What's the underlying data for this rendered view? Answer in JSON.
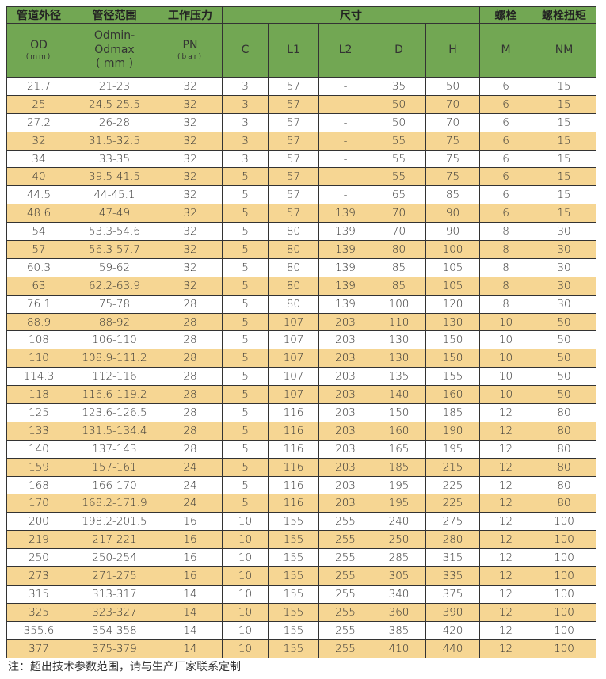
{
  "header": {
    "groups": [
      "管道外径",
      "管径范围",
      "工作压力",
      "尺寸",
      "螺栓",
      "螺栓扭矩"
    ],
    "od": "OD",
    "od_unit": "(mm)",
    "range_line1": "Odmin-",
    "range_line2": "Odmax",
    "range_unit": "( mm )",
    "pn": "PN",
    "pn_unit": "(bar)",
    "cols": [
      "C",
      "L1",
      "L2",
      "D",
      "H",
      "M",
      "NM"
    ]
  },
  "rows": [
    [
      "21.7",
      "21-23",
      "32",
      "3",
      "57",
      "-",
      "35",
      "50",
      "6",
      "15"
    ],
    [
      "25",
      "24.5-25.5",
      "32",
      "3",
      "57",
      "-",
      "50",
      "70",
      "6",
      "15"
    ],
    [
      "27.2",
      "26-28",
      "32",
      "3",
      "57",
      "-",
      "50",
      "70",
      "6",
      "15"
    ],
    [
      "32",
      "31.5-32.5",
      "32",
      "3",
      "57",
      "-",
      "55",
      "75",
      "6",
      "15"
    ],
    [
      "34",
      "33-35",
      "32",
      "3",
      "57",
      "-",
      "55",
      "75",
      "6",
      "15"
    ],
    [
      "40",
      "39.5-41.5",
      "32",
      "5",
      "57",
      "-",
      "55",
      "75",
      "6",
      "15"
    ],
    [
      "44.5",
      "44-45.1",
      "32",
      "5",
      "57",
      "-",
      "65",
      "85",
      "6",
      "15"
    ],
    [
      "48.6",
      "47-49",
      "32",
      "5",
      "57",
      "139",
      "70",
      "90",
      "6",
      "15"
    ],
    [
      "54",
      "53.3-54.6",
      "32",
      "5",
      "80",
      "139",
      "70",
      "90",
      "8",
      "30"
    ],
    [
      "57",
      "56.3-57.7",
      "32",
      "5",
      "80",
      "139",
      "80",
      "100",
      "8",
      "30"
    ],
    [
      "60.3",
      "59-62",
      "32",
      "5",
      "80",
      "139",
      "85",
      "105",
      "8",
      "30"
    ],
    [
      "63",
      "62.2-63.9",
      "32",
      "5",
      "80",
      "139",
      "85",
      "105",
      "8",
      "30"
    ],
    [
      "76.1",
      "75-78",
      "28",
      "5",
      "80",
      "139",
      "100",
      "120",
      "8",
      "30"
    ],
    [
      "88.9",
      "88-92",
      "28",
      "5",
      "107",
      "203",
      "110",
      "130",
      "10",
      "50"
    ],
    [
      "108",
      "106-110",
      "28",
      "5",
      "107",
      "203",
      "130",
      "150",
      "10",
      "50"
    ],
    [
      "110",
      "108.9-111.2",
      "28",
      "5",
      "107",
      "203",
      "130",
      "150",
      "10",
      "50"
    ],
    [
      "114.3",
      "112-116",
      "28",
      "5",
      "107",
      "203",
      "135",
      "155",
      "10",
      "50"
    ],
    [
      "118",
      "116.6-119.2",
      "28",
      "5",
      "107",
      "203",
      "140",
      "160",
      "10",
      "50"
    ],
    [
      "125",
      "123.6-126.5",
      "28",
      "5",
      "116",
      "203",
      "150",
      "185",
      "12",
      "80"
    ],
    [
      "133",
      "131.5-134.4",
      "28",
      "5",
      "116",
      "203",
      "160",
      "190",
      "12",
      "80"
    ],
    [
      "140",
      "137-143",
      "28",
      "5",
      "116",
      "203",
      "165",
      "195",
      "12",
      "80"
    ],
    [
      "159",
      "157-161",
      "24",
      "5",
      "116",
      "203",
      "185",
      "215",
      "12",
      "80"
    ],
    [
      "168",
      "166-170",
      "24",
      "5",
      "116",
      "203",
      "195",
      "225",
      "12",
      "80"
    ],
    [
      "170",
      "168.2-171.9",
      "24",
      "5",
      "116",
      "203",
      "195",
      "225",
      "12",
      "80"
    ],
    [
      "200",
      "198.2-201.5",
      "16",
      "10",
      "155",
      "255",
      "240",
      "275",
      "12",
      "100"
    ],
    [
      "219",
      "217-221",
      "16",
      "10",
      "155",
      "255",
      "250",
      "280",
      "12",
      "100"
    ],
    [
      "250",
      "250-254",
      "16",
      "10",
      "155",
      "255",
      "285",
      "315",
      "12",
      "100"
    ],
    [
      "273",
      "271-275",
      "16",
      "10",
      "155",
      "255",
      "305",
      "335",
      "12",
      "100"
    ],
    [
      "315",
      "313-317",
      "14",
      "10",
      "155",
      "255",
      "340",
      "375",
      "12",
      "100"
    ],
    [
      "325",
      "323-327",
      "14",
      "10",
      "155",
      "255",
      "360",
      "390",
      "12",
      "100"
    ],
    [
      "355.6",
      "354-358",
      "14",
      "10",
      "155",
      "255",
      "385",
      "420",
      "12",
      "100"
    ],
    [
      "377",
      "375-379",
      "14",
      "10",
      "155",
      "255",
      "410",
      "440",
      "12",
      "100"
    ]
  ],
  "note": "注：超出技术参数范围，请与生产厂家联系定制",
  "colors": {
    "header": "#72a753",
    "alt_row": "#f6d693"
  }
}
